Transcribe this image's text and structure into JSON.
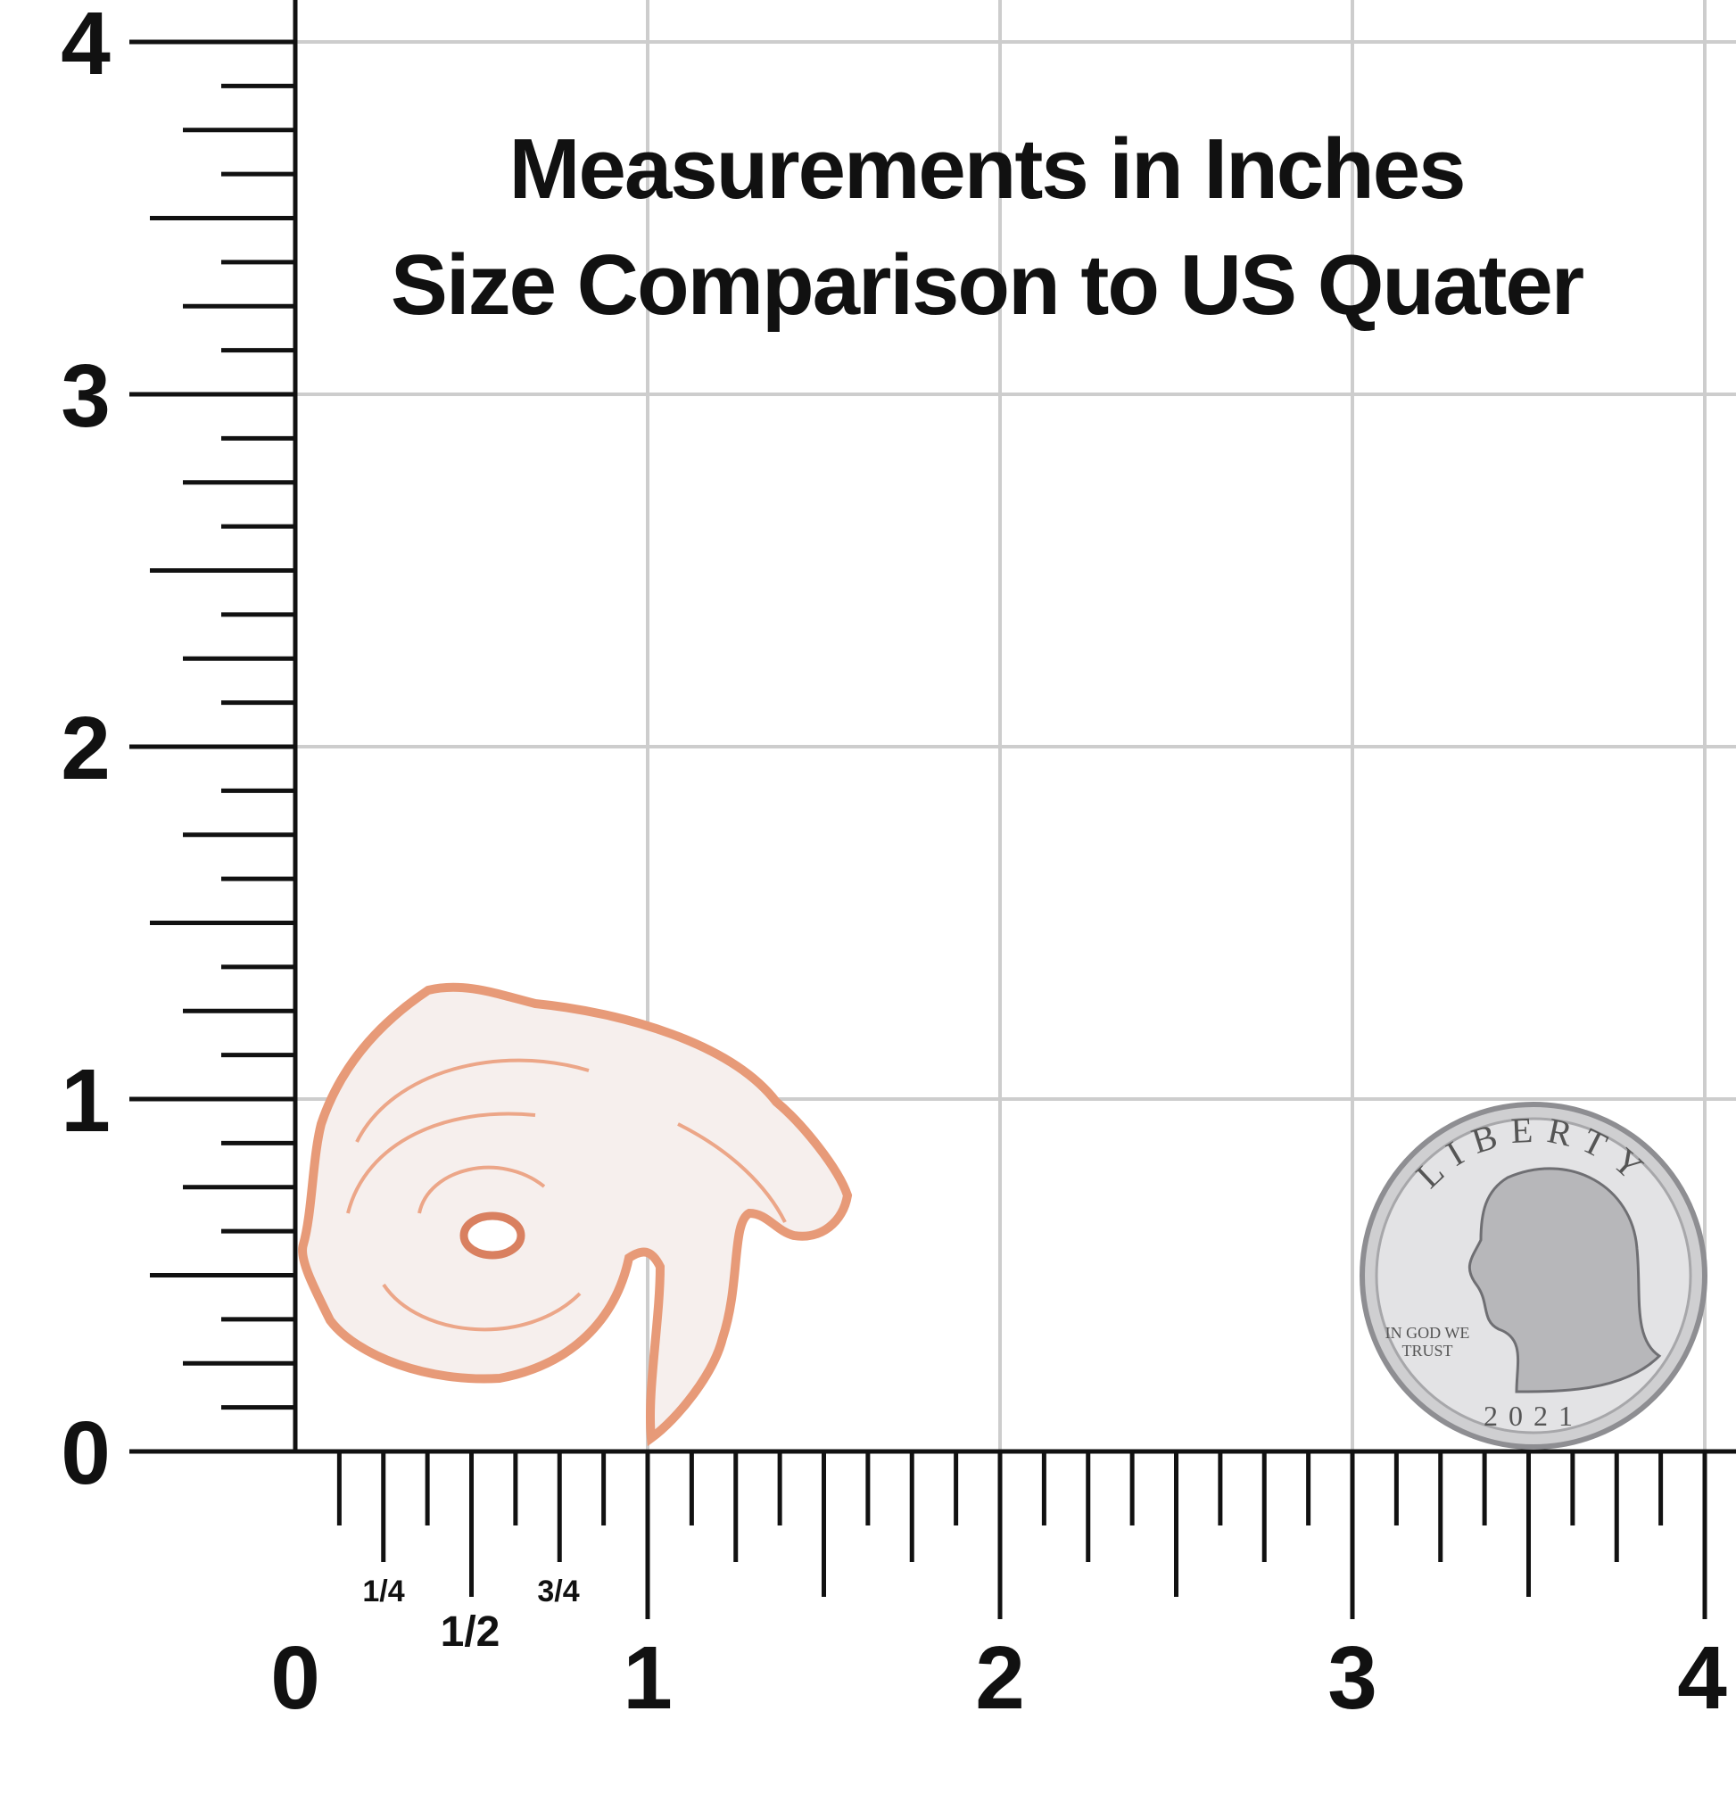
{
  "title": {
    "lines": [
      "Measurements in Inches",
      "Size Comparison to US Quater"
    ]
  },
  "ruler": {
    "x_labels": [
      "0",
      "1",
      "2",
      "3",
      "4"
    ],
    "y_labels": [
      "0",
      "1",
      "2",
      "3",
      "4"
    ],
    "fractions": [
      "1/4",
      "1/2",
      "3/4"
    ]
  },
  "coin": {
    "top": "LIBERTY",
    "motto": [
      "IN GOD WE",
      "TRUST"
    ],
    "year": "2021"
  }
}
